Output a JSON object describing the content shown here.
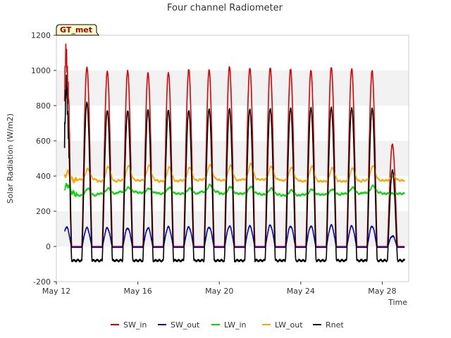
{
  "chart_data": {
    "type": "line",
    "title": "Four channel Radiometer",
    "xlabel": "Time",
    "ylabel": "Solar Radiation (W/m2)",
    "xlim": [
      12,
      29.3
    ],
    "ylim": [
      -200,
      1200
    ],
    "xticks": [
      {
        "value": 12,
        "label": "May 12"
      },
      {
        "value": 16,
        "label": "May 16"
      },
      {
        "value": 20,
        "label": "May 20"
      },
      {
        "value": 24,
        "label": "May 24"
      },
      {
        "value": 28,
        "label": "May 28"
      }
    ],
    "yticks": [
      -200,
      0,
      200,
      400,
      600,
      800,
      1000,
      1200
    ],
    "grid": "horizontal bands",
    "legend_position": "bottom-center",
    "annotation": "GT_met",
    "x_start": 12.4,
    "x_end": 29.1,
    "series": [
      {
        "name": "SW_in",
        "color": "#dd0000",
        "night": 0,
        "daily_peaks": [
          1075,
          1020,
          995,
          995,
          985,
          990,
          1005,
          1000,
          1020,
          1015,
          1015,
          1005,
          1000,
          1020,
          1010,
          995,
          580
        ]
      },
      {
        "name": "SW_out",
        "color": "#0000cc",
        "night": -5,
        "daily_peaks": [
          110,
          105,
          105,
          105,
          105,
          110,
          110,
          110,
          115,
          115,
          120,
          115,
          115,
          120,
          115,
          115,
          60
        ]
      },
      {
        "name": "LW_in",
        "color": "#00dd00",
        "night_levels": [
          300,
          290,
          300,
          310,
          305,
          300,
          300,
          310,
          300,
          300,
          295,
          290,
          295,
          295,
          300,
          305,
          300
        ],
        "day_levels": [
          350,
          330,
          330,
          335,
          330,
          335,
          330,
          350,
          340,
          340,
          330,
          320,
          325,
          325,
          335,
          345,
          300
        ]
      },
      {
        "name": "LW_out",
        "color": "#ffa500",
        "night_levels": [
          375,
          380,
          370,
          375,
          375,
          370,
          375,
          380,
          375,
          380,
          380,
          375,
          370,
          370,
          370,
          375,
          375
        ],
        "day_levels": [
          420,
          440,
          455,
          460,
          460,
          450,
          450,
          465,
          460,
          470,
          455,
          450,
          455,
          445,
          445,
          460,
          400
        ]
      },
      {
        "name": "Rnet",
        "color": "#000000",
        "night": -80,
        "daily_peaks": [
          860,
          820,
          775,
          770,
          775,
          775,
          775,
          780,
          780,
          780,
          785,
          785,
          785,
          790,
          790,
          785,
          430
        ]
      }
    ]
  }
}
